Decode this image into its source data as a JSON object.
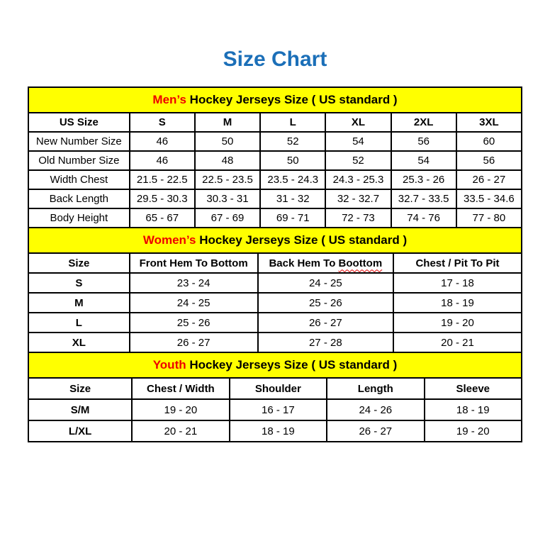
{
  "page": {
    "title": "Size Chart",
    "colors": {
      "title_blue": "#1B6FB8",
      "banner_yellow": "#FFFF00",
      "highlight_red": "#EE0000",
      "border_black": "#000000"
    }
  },
  "tables": [
    {
      "id": "mens",
      "banner": {
        "highlight": "Men’s",
        "rest": " Hockey Jerseys Size ( US standard )"
      },
      "columns": [
        "US Size",
        "S",
        "M",
        "L",
        "XL",
        "2XL",
        "3XL"
      ],
      "rows": [
        {
          "label": "New Number Size",
          "values": [
            "46",
            "50",
            "52",
            "54",
            "56",
            "60"
          ]
        },
        {
          "label": "Old Number Size",
          "values": [
            "46",
            "48",
            "50",
            "52",
            "54",
            "56"
          ]
        },
        {
          "label": "Width Chest",
          "values": [
            "21.5 - 22.5",
            "22.5 - 23.5",
            "23.5 - 24.3",
            "24.3 - 25.3",
            "25.3 - 26",
            "26 - 27"
          ]
        },
        {
          "label": "Back Length",
          "values": [
            "29.5 - 30.3",
            "30.3 - 31",
            "31 - 32",
            "32 - 32.7",
            "32.7 - 33.5",
            "33.5 - 34.6"
          ]
        },
        {
          "label": "Body Height",
          "values": [
            "65 - 67",
            "67 - 69",
            "69 - 71",
            "72 - 73",
            "74 - 76",
            "77 - 80"
          ]
        }
      ]
    },
    {
      "id": "womens",
      "banner": {
        "highlight": "Women’s",
        "rest": " Hockey Jerseys Size ( US standard )"
      },
      "columns": [
        "Size",
        "Front Hem To Bottom",
        "Back Hem To Boottom",
        "Chest / Pit To Pit"
      ],
      "spellcheck": {
        "column": 2,
        "word": "Boottom"
      },
      "rows": [
        {
          "label": "S",
          "values": [
            "23 - 24",
            "24 - 25",
            "17 - 18"
          ]
        },
        {
          "label": "M",
          "values": [
            "24 - 25",
            "25 - 26",
            "18 - 19"
          ]
        },
        {
          "label": "L",
          "values": [
            "25 - 26",
            "26 - 27",
            "19 - 20"
          ]
        },
        {
          "label": "XL",
          "values": [
            "26 - 27",
            "27 - 28",
            "20 - 21"
          ]
        }
      ]
    },
    {
      "id": "youth",
      "banner": {
        "highlight": "Youth",
        "rest": " Hockey Jerseys Size ( US standard )"
      },
      "columns": [
        "Size",
        "Chest / Width",
        "Shoulder",
        "Length",
        "Sleeve"
      ],
      "rows": [
        {
          "label": "S/M",
          "values": [
            "19 - 20",
            "16 - 17",
            "24 - 26",
            "18 - 19"
          ]
        },
        {
          "label": "L/XL",
          "values": [
            "20 - 21",
            "18 - 19",
            "26 - 27",
            "19 - 20"
          ]
        }
      ]
    }
  ]
}
